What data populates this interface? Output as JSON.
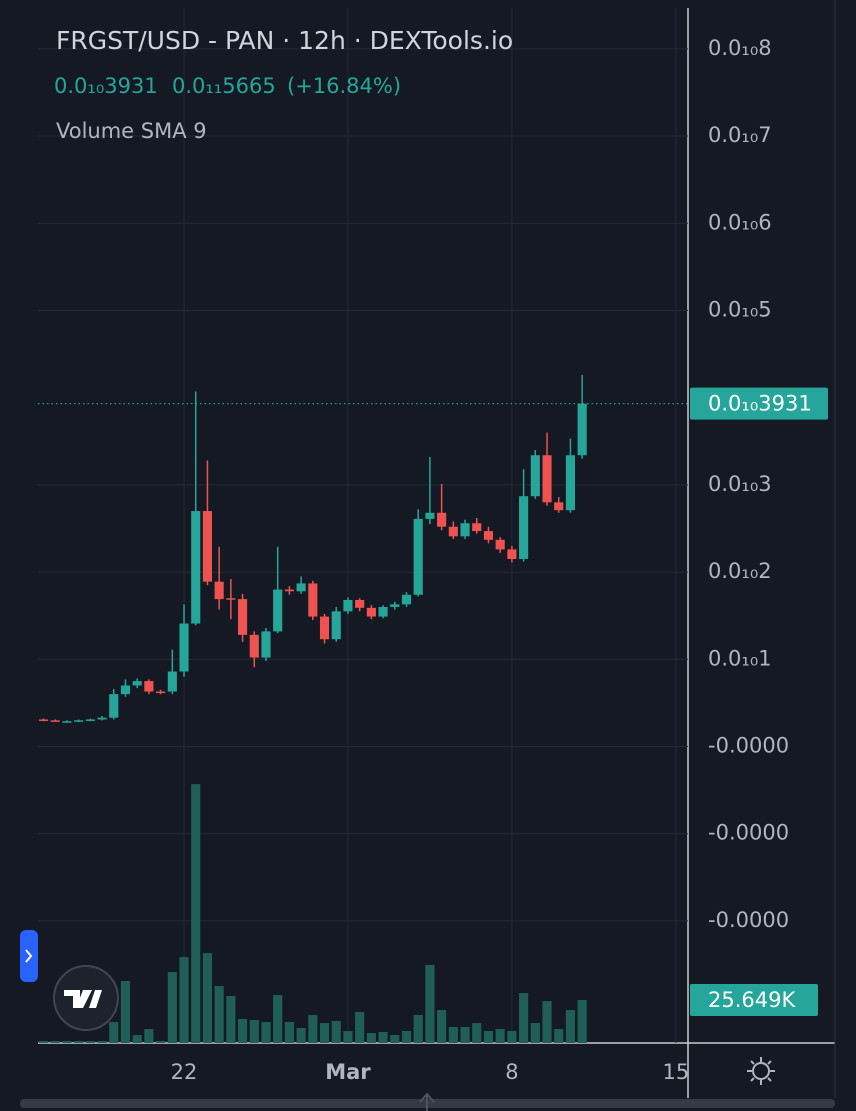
{
  "chart_data": {
    "type": "candlestick",
    "title": "FRGST/USD - PAN · 12h · DEXTools.io",
    "header": {
      "price": "0.0₁₀3931",
      "change_value": "0.0₁₁5665",
      "change_percent": "(+16.84%)"
    },
    "indicator": "Volume SMA 9",
    "categories": [
      null,
      null,
      null,
      null,
      null,
      null,
      null,
      null,
      null,
      null,
      null,
      null,
      null,
      null,
      null,
      null,
      null,
      null,
      null,
      null,
      null,
      null,
      null,
      null,
      null,
      null,
      null,
      null,
      null,
      null,
      null,
      null,
      null,
      null,
      null,
      null,
      null,
      null,
      null,
      null,
      null,
      null,
      null,
      null,
      null,
      null,
      null
    ],
    "open": [
      3.1e-12,
      3e-12,
      2.9e-12,
      2.9e-12,
      3e-12,
      3.1e-12,
      3.3e-12,
      6e-12,
      7e-12,
      7.5e-12,
      6.3e-12,
      6.3e-12,
      8.6e-12,
      1.41e-11,
      2.7e-11,
      1.89e-11,
      1.7e-11,
      1.69e-11,
      1.28e-11,
      1.02e-11,
      1.32e-11,
      1.8e-11,
      1.78e-11,
      1.87e-11,
      1.49e-11,
      1.23e-11,
      1.55e-11,
      1.68e-11,
      1.59e-11,
      1.49e-11,
      1.6e-11,
      1.63e-11,
      1.74e-11,
      2.61e-11,
      2.68e-11,
      2.52e-11,
      2.41e-11,
      2.56e-11,
      2.47e-11,
      2.37e-11,
      2.26e-11,
      2.15e-11,
      2.87e-11,
      3.34e-11,
      2.8e-11,
      2.71e-11,
      3.34e-11
    ],
    "high": [
      3.2e-12,
      3.1e-12,
      3e-12,
      3.1e-12,
      3.2e-12,
      3.5e-12,
      6.6e-12,
      7.7e-12,
      7.8e-12,
      7.7e-12,
      6.5e-12,
      1.11e-11,
      1.63e-11,
      4.07e-11,
      3.28e-11,
      2.29e-11,
      1.92e-11,
      1.75e-11,
      1.32e-11,
      1.36e-11,
      2.29e-11,
      1.84e-11,
      1.95e-11,
      1.9e-11,
      1.52e-11,
      1.6e-11,
      1.71e-11,
      1.7e-11,
      1.62e-11,
      1.62e-11,
      1.66e-11,
      1.77e-11,
      2.72e-11,
      3.32e-11,
      3.01e-11,
      2.58e-11,
      2.6e-11,
      2.62e-11,
      2.52e-11,
      2.4e-11,
      2.3e-11,
      3.18e-11,
      3.4e-11,
      3.6e-11,
      2.86e-11,
      3.53e-11,
      4.26e-11
    ],
    "low": [
      2.9e-12,
      2.9e-12,
      2.8e-12,
      2.8e-12,
      2.9e-12,
      3e-12,
      3.1e-12,
      5.7e-12,
      6.7e-12,
      6e-12,
      6e-12,
      6e-12,
      8e-12,
      1.39e-11,
      1.85e-11,
      1.57e-11,
      1.46e-11,
      1.2e-11,
      9.1e-12,
      9.8e-12,
      1.3e-11,
      1.74e-11,
      1.75e-11,
      1.45e-11,
      1.18e-11,
      1.2e-11,
      1.52e-11,
      1.55e-11,
      1.46e-11,
      1.47e-11,
      1.57e-11,
      1.6e-11,
      1.72e-11,
      2.55e-11,
      2.48e-11,
      2.38e-11,
      2.38e-11,
      2.44e-11,
      2.33e-11,
      2.22e-11,
      2.11e-11,
      2.12e-11,
      2.84e-11,
      2.76e-11,
      2.68e-11,
      2.68e-11,
      3.3e-11
    ],
    "close": [
      3e-12,
      2.9e-12,
      2.9e-12,
      3e-12,
      3.1e-12,
      3.3e-12,
      6e-12,
      7e-12,
      7.5e-12,
      6.3e-12,
      6.2e-12,
      8.6e-12,
      1.41e-11,
      2.7e-11,
      1.89e-11,
      1.69e-11,
      1.69e-11,
      1.28e-11,
      1.02e-11,
      1.32e-11,
      1.8e-11,
      1.78e-11,
      1.87e-11,
      1.49e-11,
      1.23e-11,
      1.55e-11,
      1.68e-11,
      1.59e-11,
      1.49e-11,
      1.6e-11,
      1.63e-11,
      1.74e-11,
      2.61e-11,
      2.68e-11,
      2.52e-11,
      2.41e-11,
      2.56e-11,
      2.47e-11,
      2.37e-11,
      2.26e-11,
      2.15e-11,
      2.87e-11,
      3.34e-11,
      2.8e-11,
      2.71e-11,
      3.34e-11,
      3.931e-11
    ],
    "up_color": "#26a69a",
    "down_color": "#ef5350",
    "volume": {
      "color": "#1f5f57",
      "axis": "y2",
      "values": [
        1192,
        1192,
        1192,
        1192,
        1192,
        1192,
        12516,
        36952,
        4768,
        8344,
        1192,
        42316,
        51256,
        154364,
        53640,
        33972,
        28012,
        14304,
        13708,
        12516,
        28608,
        12516,
        8940,
        16688,
        11920,
        13112,
        7152,
        18476,
        5960,
        6556,
        4768,
        7152,
        16688,
        46488,
        19668,
        9536,
        9536,
        11920,
        7152,
        8344,
        7152,
        29800,
        11920,
        25032,
        8344,
        19668,
        25649
      ]
    },
    "volume_label": "25.649K",
    "ylim": [
      -3.4e-11,
      8.56e-11
    ],
    "yticks": [
      {
        "value": 8e-11,
        "label": "0.0₁₀8"
      },
      {
        "value": 7e-11,
        "label": "0.0₁₀7"
      },
      {
        "value": 6e-11,
        "label": "0.0₁₀6"
      },
      {
        "value": 5e-11,
        "label": "0.0₁₀5"
      },
      {
        "value": 3e-11,
        "label": "0.0₁₀3"
      },
      {
        "value": 2e-11,
        "label": "0.0₁₀2"
      },
      {
        "value": 1e-11,
        "label": "0.0₁₀1"
      },
      {
        "value": 0,
        "label": "-0.0000"
      },
      {
        "value": -1e-11,
        "label": "-0.0000"
      },
      {
        "value": -2e-11,
        "label": "-0.0000"
      }
    ],
    "y2lim": [
      0,
      622000
    ],
    "xlim": [
      -0.47,
      55.04
    ],
    "xticks": [
      {
        "value": 12,
        "label": "22"
      },
      {
        "value": 26,
        "label": "Mar"
      },
      {
        "value": 40,
        "label": "8"
      },
      {
        "value": 54,
        "label": "15"
      }
    ],
    "grid": true
  }
}
